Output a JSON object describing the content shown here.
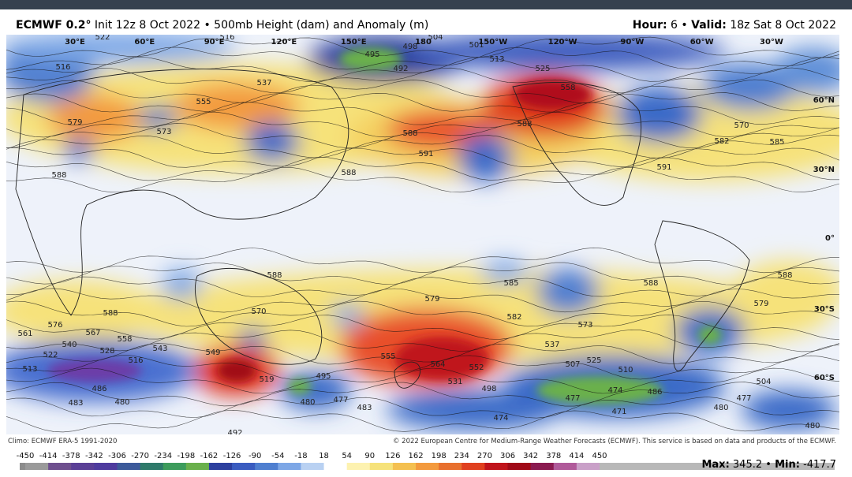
{
  "header": {
    "model": "ECMWF 0.2°",
    "init": "Init 12z 8 Oct 2022",
    "separator": "•",
    "field": "500mb Height (dam) and Anomaly (m)",
    "hour_label": "Hour:",
    "hour": "6",
    "valid_label": "Valid:",
    "valid": "18z Sat 8 Oct 2022"
  },
  "map": {
    "longitude_labels": [
      "30°E",
      "60°E",
      "90°E",
      "120°E",
      "150°E",
      "180",
      "150°W",
      "120°W",
      "90°W",
      "60°W",
      "30°W"
    ],
    "latitude_labels": [
      "60°N",
      "30°N",
      "0°",
      "30°S",
      "60°S"
    ],
    "contour_labels": [
      "522",
      "516",
      "504",
      "495",
      "498",
      "492",
      "501",
      "513",
      "525",
      "516",
      "537",
      "555",
      "573",
      "579",
      "588",
      "591",
      "588",
      "558",
      "570",
      "582",
      "585",
      "591",
      "588",
      "588",
      "585",
      "588",
      "588",
      "588",
      "579",
      "582",
      "573",
      "579",
      "570",
      "576",
      "588",
      "561",
      "567",
      "558",
      "543",
      "540",
      "522",
      "528",
      "516",
      "549",
      "555",
      "564",
      "552",
      "531",
      "519",
      "495",
      "498",
      "537",
      "507",
      "525",
      "510",
      "474",
      "486",
      "477",
      "471",
      "480",
      "477",
      "480",
      "504",
      "513",
      "486",
      "483",
      "480",
      "480",
      "477",
      "483",
      "474",
      "492"
    ]
  },
  "footer": {
    "climo": "Climo: ECMWF ERA-5 1991-2020",
    "copyright": "© 2022 European Centre for Medium-Range Weather Forecasts (ECMWF). This service is based on data and products of the ECMWF."
  },
  "colorbar": {
    "ticks": [
      -450,
      -414,
      -378,
      -342,
      -306,
      -270,
      -234,
      -198,
      -162,
      -126,
      -90,
      -54,
      -18,
      18,
      54,
      90,
      126,
      162,
      198,
      234,
      270,
      306,
      342,
      378,
      414,
      450
    ]
  },
  "stats": {
    "max_label": "Max:",
    "max": "345.2",
    "separator": "•",
    "min_label": "Min:",
    "min": "-417.7"
  }
}
